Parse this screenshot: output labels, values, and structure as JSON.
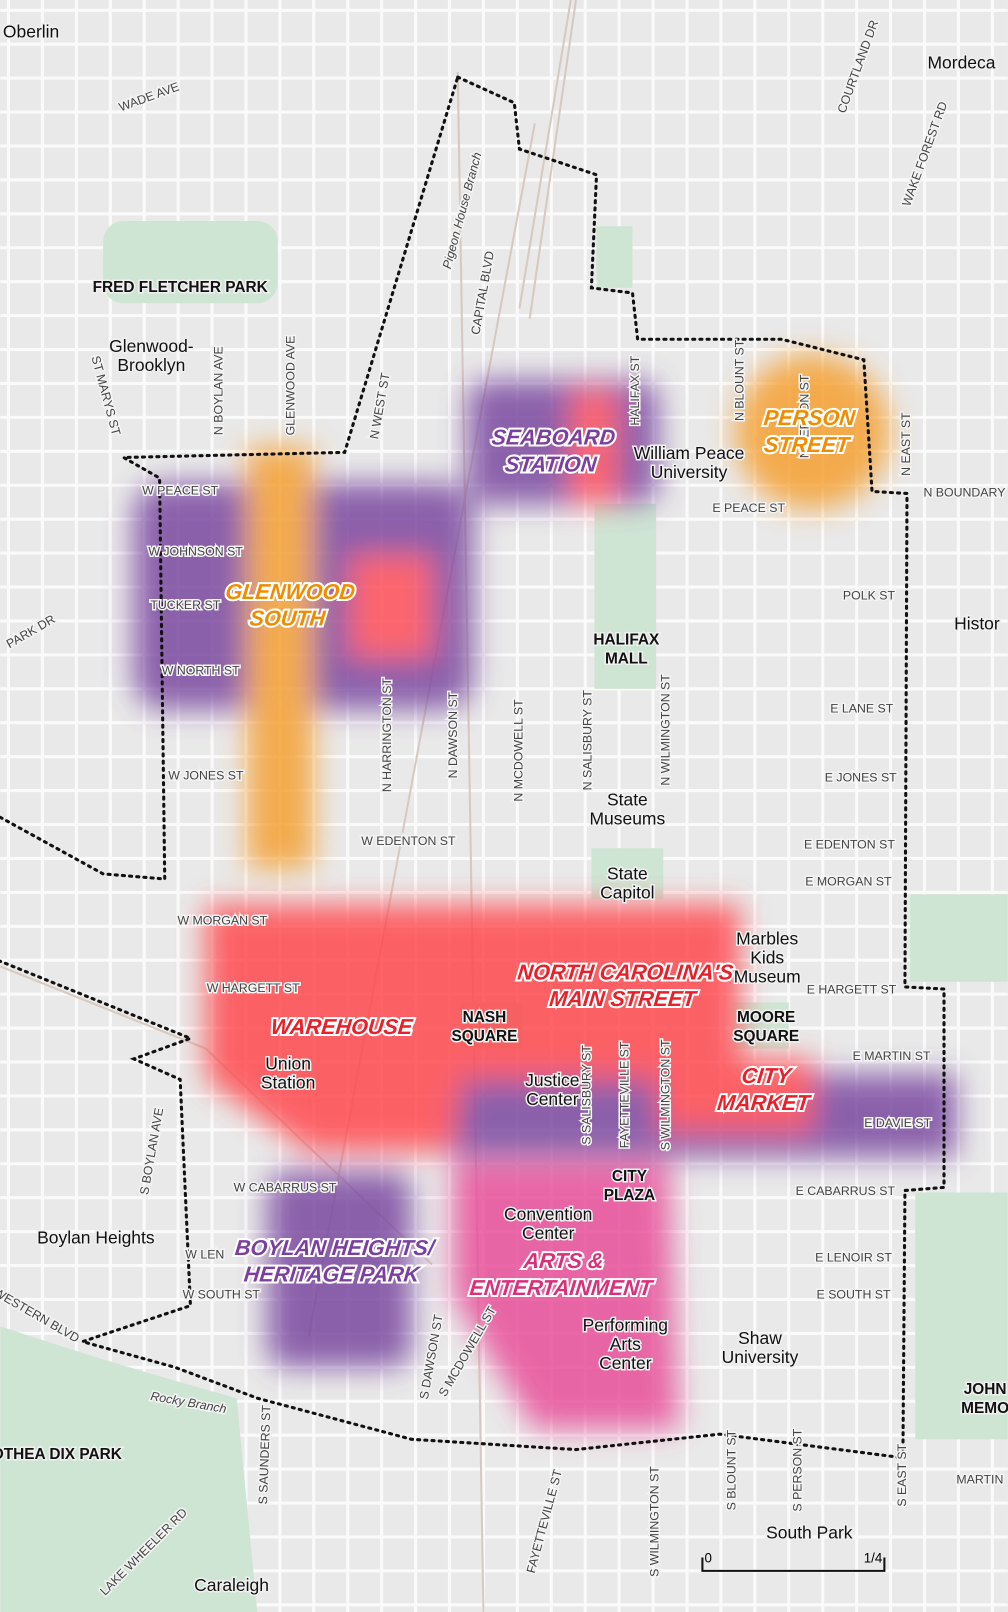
{
  "districts": [
    {
      "lines": [
        "SEABOARD",
        "STATION"
      ],
      "color": "#7b3fa0"
    },
    {
      "lines": [
        "PERSON",
        "STREET"
      ],
      "color": "#f08c00"
    },
    {
      "lines": [
        "GLENWOOD",
        "SOUTH"
      ],
      "color": "#f08c00"
    },
    {
      "lines": [
        "NORTH CAROLINA'S",
        "MAIN STREET"
      ],
      "color": "#e8202a"
    },
    {
      "lines": [
        "WAREHOUSE"
      ],
      "color": "#e8202a"
    },
    {
      "lines": [
        "CITY",
        "MARKET"
      ],
      "color": "#e8202a"
    },
    {
      "lines": [
        "BOYLAN HEIGHTS/",
        "HERITAGE PARK"
      ],
      "color": "#7b3fa0"
    },
    {
      "lines": [
        "ARTS &",
        "ENTERTAINMENT"
      ],
      "color": "#d9307a"
    }
  ],
  "places": [
    {
      "lines": [
        "Oberlin"
      ]
    },
    {
      "lines": [
        "Mordeca"
      ]
    },
    {
      "lines": [
        "FRED FLETCHER PARK"
      ]
    },
    {
      "lines": [
        "Glenwood-",
        "Brooklyn"
      ]
    },
    {
      "lines": [
        "William Peace",
        "University"
      ]
    },
    {
      "lines": [
        "HALIFAX",
        "MALL"
      ]
    },
    {
      "lines": [
        "State",
        "Museums"
      ]
    },
    {
      "lines": [
        "State",
        "Capitol"
      ]
    },
    {
      "lines": [
        "Marbles",
        "Kids",
        "Museum"
      ]
    },
    {
      "lines": [
        "NASH",
        "SQUARE"
      ]
    },
    {
      "lines": [
        "MOORE",
        "SQUARE"
      ]
    },
    {
      "lines": [
        "Union",
        "Station"
      ]
    },
    {
      "lines": [
        "Justice",
        "Center"
      ]
    },
    {
      "lines": [
        "CITY",
        "PLAZA"
      ]
    },
    {
      "lines": [
        "Convention",
        "Center"
      ]
    },
    {
      "lines": [
        "Performing",
        "Arts",
        "Center"
      ]
    },
    {
      "lines": [
        "Shaw",
        "University"
      ]
    },
    {
      "lines": [
        "Boylan Heights"
      ]
    },
    {
      "lines": [
        "South Park"
      ]
    },
    {
      "lines": [
        "Caraleigh"
      ]
    },
    {
      "lines": [
        "OTHEA DIX PARK"
      ]
    },
    {
      "lines": [
        "Histor"
      ]
    },
    {
      "lines": [
        "JOHN",
        "MEMO"
      ]
    }
  ],
  "streets": [
    "WADE AVE",
    "COURTLAND DR",
    "WAKE FOREST RD",
    "Pigeon House Branch",
    "CAPITAL BLVD",
    "GLENWOOD AVE",
    "N BOYLAN AVE",
    "ST MARYS ST",
    "N WEST ST",
    "HALIFAX ST",
    "N BLOUNT ST",
    "N PERSON ST",
    "N EAST ST",
    "N BOUNDARY",
    "W PEACE ST",
    "E PEACE ST",
    "W JOHNSON ST",
    "TUCKER ST",
    "PARK DR",
    "W NORTH ST",
    "POLK ST",
    "E LANE ST",
    "N HARRINGTON ST",
    "N DAWSON ST",
    "N MCDOWELL ST",
    "N SALISBURY ST",
    "N WILMINGTON ST",
    "W JONES ST",
    "E JONES ST",
    "W EDENTON ST",
    "E EDENTON ST",
    "E MORGAN ST",
    "W MORGAN ST",
    "W HARGETT ST",
    "E HARGETT ST",
    "E MARTIN ST",
    "E DAVIE ST",
    "S BOYLAN AVE",
    "W CABARRUS ST",
    "E CABARRUS ST",
    "S SALISBURY ST",
    "FAYETTEVILLE ST",
    "S WILMINGTON ST",
    "W LEN",
    "E LENOIR ST",
    "W SOUTH ST",
    "E SOUTH ST",
    "WESTERN BLVD",
    "S DAWSON ST",
    "S MCDOWELL ST",
    "Rocky Branch",
    "S SAUNDERS ST",
    "LAKE WHEELER RD",
    "FAYETTEVILLE ST",
    "S WILMINGTON ST",
    "S BLOUNT ST",
    "S PERSON ST",
    "S EAST ST",
    "MARTIN"
  ],
  "scale": {
    "start": "0",
    "end": "1/4"
  }
}
